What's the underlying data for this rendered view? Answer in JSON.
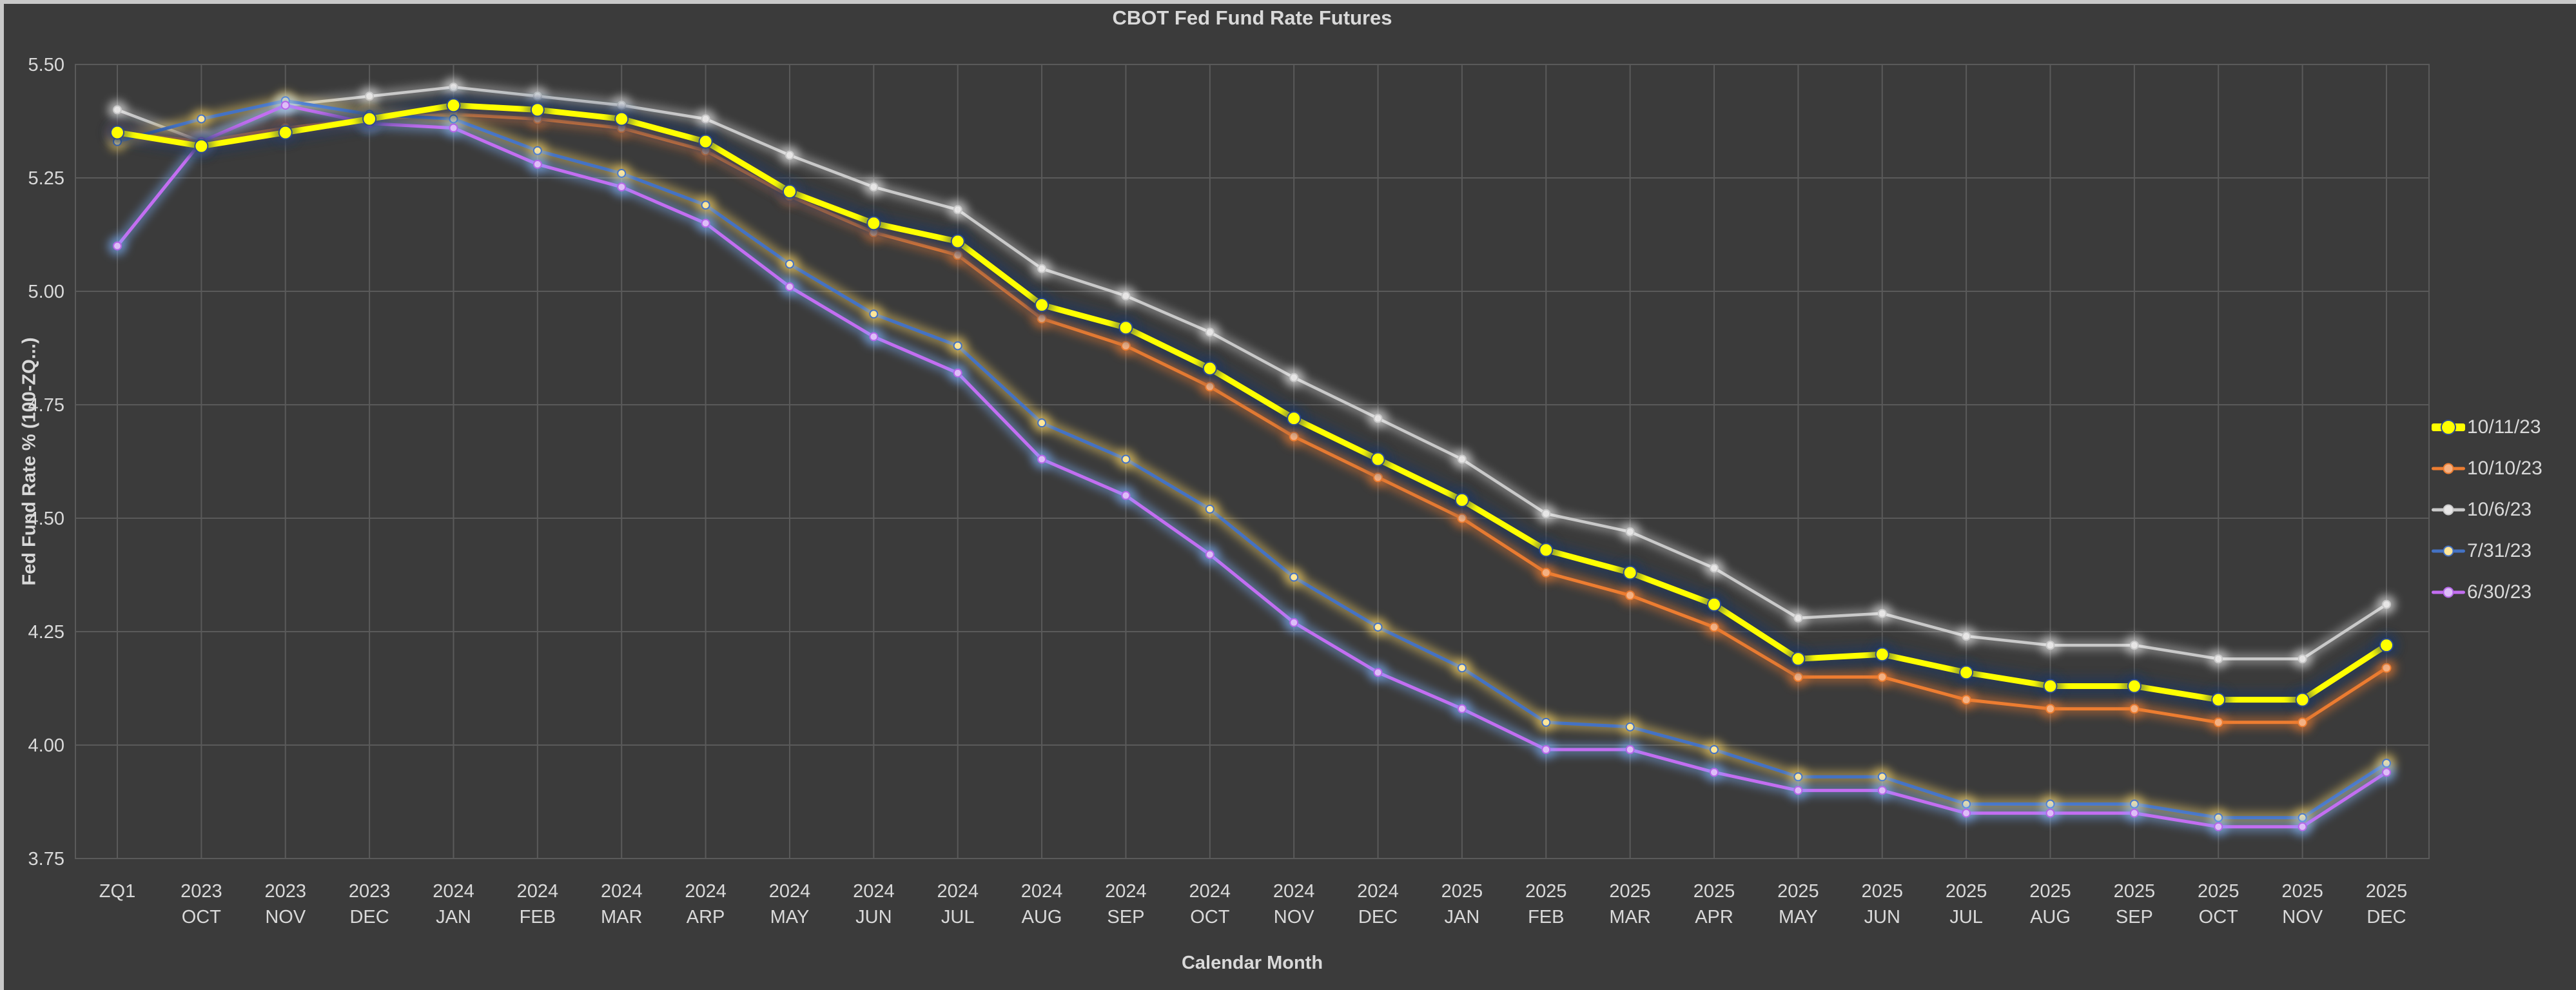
{
  "window": {
    "edge_color": "#C9C9C9",
    "background": "#3B3B3B"
  },
  "chart_data": {
    "type": "line",
    "title": "CBOT Fed Fund Rate Futures",
    "xlabel": "Calendar Month",
    "ylabel": "Fed Fund Rate % (100-ZQ...)",
    "ylim": [
      3.75,
      5.5
    ],
    "y_ticks": [
      "5.50",
      "5.25",
      "5.00",
      "4.75",
      "4.50",
      "4.25",
      "4.00",
      "3.75"
    ],
    "grid": "both",
    "legend_position": "right",
    "colors": {
      "background": "#3B3B3B",
      "gridline": "#5A5A5A",
      "text": "#D9D9D9"
    },
    "categories": [
      [
        "ZQ1"
      ],
      [
        "2023",
        "OCT"
      ],
      [
        "2023",
        "NOV"
      ],
      [
        "2023",
        "DEC"
      ],
      [
        "2024",
        "JAN"
      ],
      [
        "2024",
        "FEB"
      ],
      [
        "2024",
        "MAR"
      ],
      [
        "2024",
        "ARP"
      ],
      [
        "2024",
        "MAY"
      ],
      [
        "2024",
        "JUN"
      ],
      [
        "2024",
        "JUL"
      ],
      [
        "2024",
        "AUG"
      ],
      [
        "2024",
        "SEP"
      ],
      [
        "2024",
        "OCT"
      ],
      [
        "2024",
        "NOV"
      ],
      [
        "2024",
        "DEC"
      ],
      [
        "2025",
        "JAN"
      ],
      [
        "2025",
        "FEB"
      ],
      [
        "2025",
        "MAR"
      ],
      [
        "2025",
        "APR"
      ],
      [
        "2025",
        "MAY"
      ],
      [
        "2025",
        "JUN"
      ],
      [
        "2025",
        "JUL"
      ],
      [
        "2025",
        "AUG"
      ],
      [
        "2025",
        "SEP"
      ],
      [
        "2025",
        "OCT"
      ],
      [
        "2025",
        "NOV"
      ],
      [
        "2025",
        "DEC"
      ]
    ],
    "series": [
      {
        "name": "10/11/23",
        "color": "#FFFF00",
        "glow": "#1F3864",
        "marker": "#FFFF00",
        "marker_stroke": "#2E4B8F",
        "width": 9,
        "marker_r": 10,
        "values": [
          5.35,
          5.32,
          5.35,
          5.38,
          5.41,
          5.4,
          5.38,
          5.33,
          5.22,
          5.15,
          5.11,
          4.97,
          4.92,
          4.83,
          4.72,
          4.63,
          4.54,
          4.43,
          4.38,
          4.31,
          4.19,
          4.2,
          4.16,
          4.13,
          4.13,
          4.1,
          4.1,
          4.22
        ]
      },
      {
        "name": "10/10/23",
        "color": "#ED7D31",
        "glow": "#ED7D31",
        "marker": "#F4B183",
        "marker_stroke": "#ED7D31",
        "width": 5,
        "marker_r": 6.5,
        "values": [
          5.35,
          5.33,
          5.36,
          5.38,
          5.39,
          5.38,
          5.36,
          5.31,
          5.21,
          5.13,
          5.08,
          4.94,
          4.88,
          4.79,
          4.68,
          4.59,
          4.5,
          4.38,
          4.33,
          4.26,
          4.15,
          4.15,
          4.1,
          4.08,
          4.08,
          4.05,
          4.05,
          4.17
        ]
      },
      {
        "name": "10/6/23",
        "color": "#C9C9C9",
        "glow": "#FFFFFF",
        "marker": "#E7E6E6",
        "marker_stroke": "#C9C9C9",
        "width": 4.5,
        "marker_r": 6,
        "values": [
          5.4,
          5.33,
          5.41,
          5.43,
          5.45,
          5.43,
          5.41,
          5.38,
          5.3,
          5.23,
          5.18,
          5.05,
          4.99,
          4.91,
          4.81,
          4.72,
          4.63,
          4.51,
          4.47,
          4.39,
          4.28,
          4.29,
          4.24,
          4.22,
          4.22,
          4.19,
          4.19,
          4.31
        ]
      },
      {
        "name": "7/31/23",
        "color": "#4472C4",
        "glow": "#FFD966",
        "marker": "#FFE699",
        "marker_stroke": "#4472C4",
        "width": 5,
        "marker_r": 6,
        "values": [
          5.33,
          5.38,
          5.42,
          5.39,
          5.38,
          5.31,
          5.26,
          5.19,
          5.06,
          4.95,
          4.88,
          4.71,
          4.63,
          4.52,
          4.37,
          4.26,
          4.17,
          4.05,
          4.04,
          3.99,
          3.93,
          3.93,
          3.87,
          3.87,
          3.87,
          3.84,
          3.84,
          3.96
        ]
      },
      {
        "name": "6/30/23",
        "color": "#C36EF1",
        "glow": "#7EB3FF",
        "marker": "#DDBDF8",
        "marker_stroke": "#B565E8",
        "width": 5,
        "marker_r": 6,
        "values": [
          5.1,
          5.33,
          5.41,
          5.37,
          5.36,
          5.28,
          5.23,
          5.15,
          5.01,
          4.9,
          4.82,
          4.63,
          4.55,
          4.42,
          4.27,
          4.16,
          4.08,
          3.99,
          3.99,
          3.94,
          3.9,
          3.9,
          3.85,
          3.85,
          3.85,
          3.82,
          3.82,
          3.94
        ]
      }
    ]
  }
}
